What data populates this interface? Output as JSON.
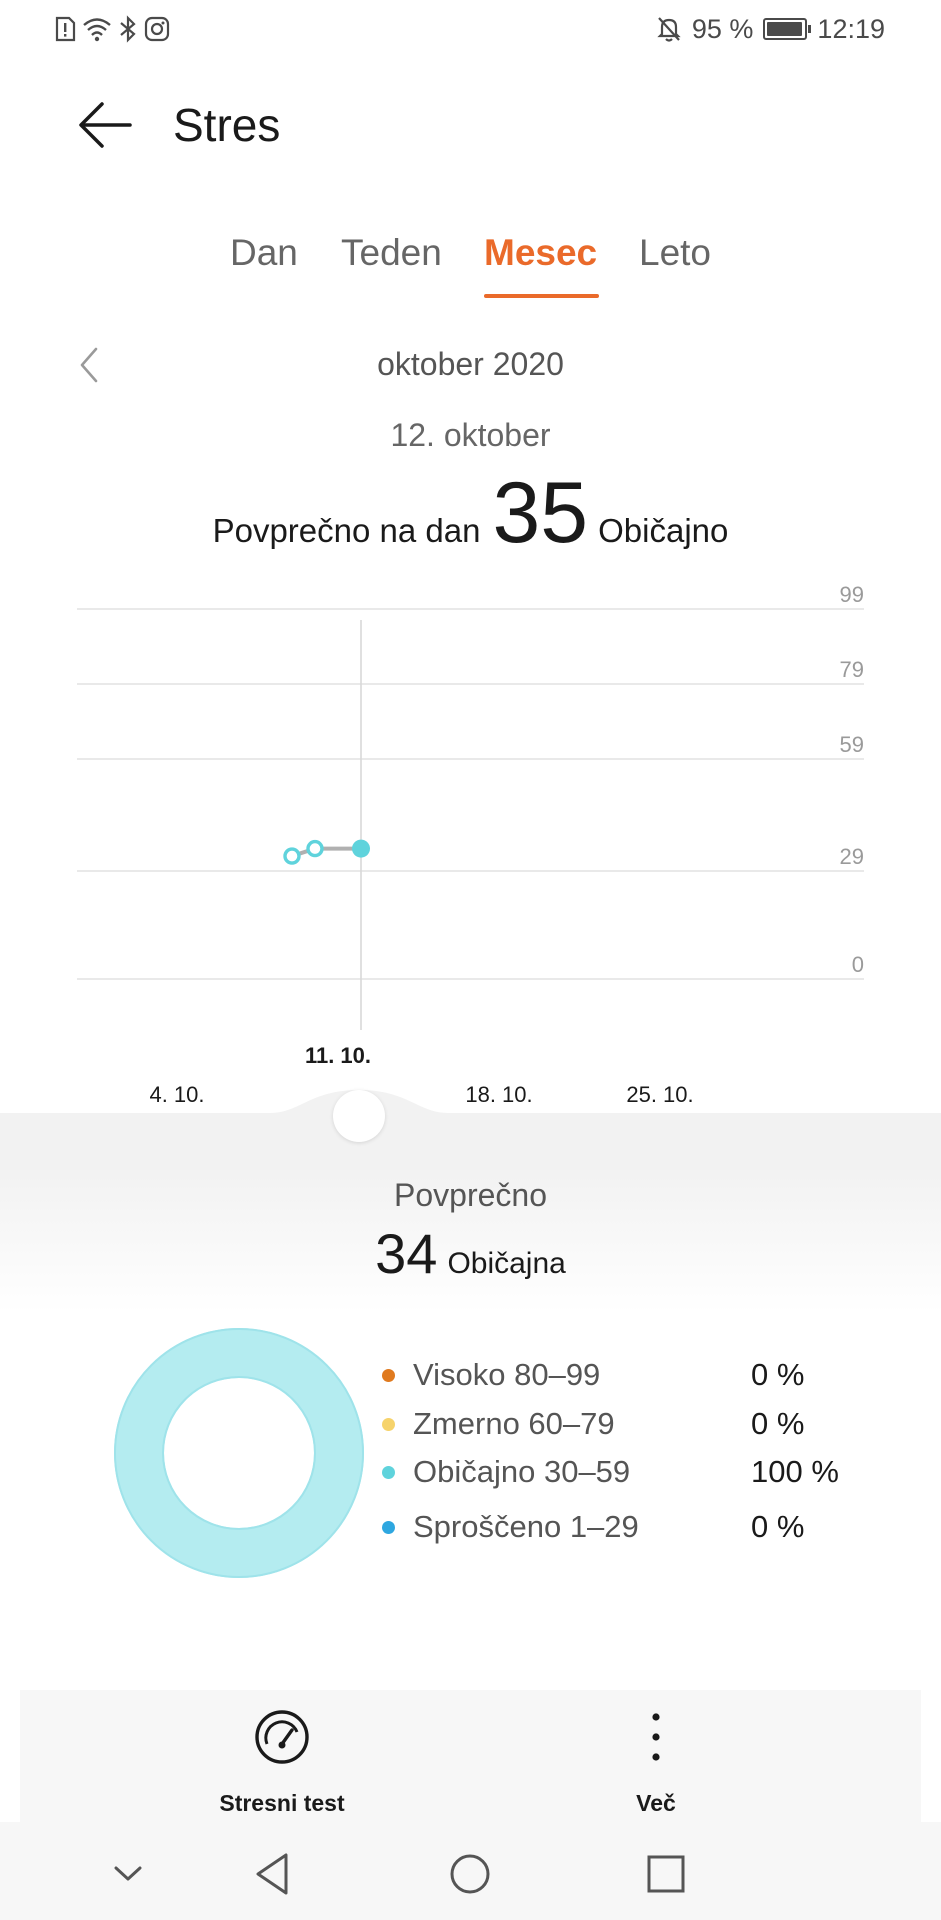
{
  "status_bar": {
    "icons": [
      "sim-alert-icon",
      "wifi-icon",
      "bluetooth-icon",
      "instagram-icon"
    ],
    "right_icons": [
      "bell-off-icon",
      "battery-icon"
    ],
    "battery_percent": "95 %",
    "battery_level": 0.95,
    "time": "12:19"
  },
  "header": {
    "back_icon": "arrow-left-icon",
    "title": "Stres"
  },
  "tabs": [
    {
      "label": "Dan",
      "active": false
    },
    {
      "label": "Teden",
      "active": false
    },
    {
      "label": "Mesec",
      "active": true
    },
    {
      "label": "Leto",
      "active": false
    }
  ],
  "period": {
    "prev_icon": "chevron-left-icon",
    "label": "oktober 2020"
  },
  "selection": {
    "date": "12. oktober",
    "prefix": "Povprečno na dan",
    "value": "35",
    "level": "Običajno"
  },
  "chart_data": {
    "type": "line",
    "y_ticks": [
      "99",
      "79",
      "59",
      "29",
      "0"
    ],
    "y_tick_values": [
      99,
      79,
      59,
      29,
      0
    ],
    "ylim": [
      0,
      99
    ],
    "x_ticks": [
      "4. 10.",
      "11. 10.",
      "18. 10.",
      "25. 10."
    ],
    "selected_x_tick": "11. 10.",
    "x_range": [
      "1. 10.",
      "31. 10."
    ],
    "points": [
      {
        "day": 9,
        "value": 33
      },
      {
        "day": 10,
        "value": 35
      },
      {
        "day": 12,
        "value": 35
      }
    ],
    "selected_point": {
      "day": 12,
      "value": 35
    },
    "grid": true,
    "color": "#5fd3dc"
  },
  "monthly": {
    "label": "Povprečno",
    "value": "34",
    "level": "Običajna"
  },
  "distribution": {
    "type": "pie",
    "items": [
      {
        "label": "Visoko 80–99",
        "value": "0 %",
        "percent": 0,
        "color": "#e07a1f"
      },
      {
        "label": "Zmerno 60–79",
        "value": "0 %",
        "percent": 0,
        "color": "#f6d36b"
      },
      {
        "label": "Običajno 30–59",
        "value": "100 %",
        "percent": 100,
        "color": "#5fd3dc"
      },
      {
        "label": "Sproščeno 1–29",
        "value": "0 %",
        "percent": 0,
        "color": "#2ea7e0"
      }
    ]
  },
  "actions": [
    {
      "label": "Stresni test",
      "icon": "gauge-icon"
    },
    {
      "label": "Več",
      "icon": "more-vertical-icon"
    }
  ],
  "nav": [
    "chevron-down-icon",
    "back-triangle-icon",
    "home-circle-icon",
    "recents-square-icon"
  ],
  "colors": {
    "accent": "#ea6a2a",
    "normal": "#5fd3dc",
    "donut_fill": "#b4ecf0"
  }
}
